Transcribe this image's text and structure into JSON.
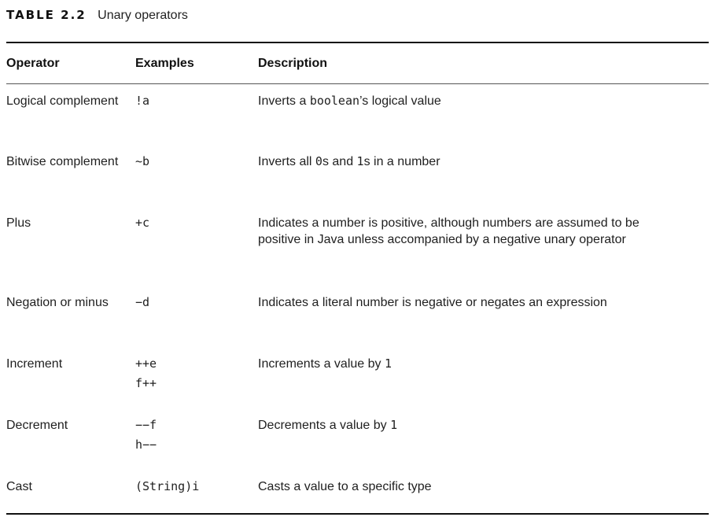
{
  "caption": {
    "label": "TABLE 2.2",
    "title": "Unary operators"
  },
  "table": {
    "headers": {
      "operator": "Operator",
      "examples": "Examples",
      "description": "Description"
    },
    "rows": [
      {
        "operator": "Logical complement",
        "examples": [
          "!a"
        ],
        "description": [
          {
            "text": "Inverts a ",
            "mono": false
          },
          {
            "text": "boolean",
            "mono": true
          },
          {
            "text": "’s logical value",
            "mono": false
          }
        ]
      },
      {
        "operator": "Bitwise complement",
        "examples": [
          "~b"
        ],
        "description": [
          {
            "text": "Inverts all ",
            "mono": false
          },
          {
            "text": "0",
            "mono": true
          },
          {
            "text": "s and ",
            "mono": false
          },
          {
            "text": "1",
            "mono": true
          },
          {
            "text": "s in a number",
            "mono": false
          }
        ]
      },
      {
        "operator": "Plus",
        "examples": [
          "+c"
        ],
        "description": [
          {
            "text": "Indicates a number is positive, although numbers are assumed to be positive in Java unless accompanied by a negative unary operator",
            "mono": false
          }
        ]
      },
      {
        "operator": "Negation or minus",
        "examples": [
          "−d"
        ],
        "description": [
          {
            "text": "Indicates a literal number is negative or negates an expression",
            "mono": false
          }
        ]
      },
      {
        "operator": "Increment",
        "examples": [
          "++e",
          "f++"
        ],
        "description": [
          {
            "text": "Increments a value by ",
            "mono": false
          },
          {
            "text": "1",
            "mono": true
          }
        ]
      },
      {
        "operator": "Decrement",
        "examples": [
          "−−f",
          "h−−"
        ],
        "description": [
          {
            "text": "Decrements a value by ",
            "mono": false
          },
          {
            "text": "1",
            "mono": true
          }
        ]
      },
      {
        "operator": "Cast",
        "examples": [
          "(String)i"
        ],
        "description": [
          {
            "text": "Casts a value to a specific type",
            "mono": false
          }
        ]
      }
    ]
  }
}
